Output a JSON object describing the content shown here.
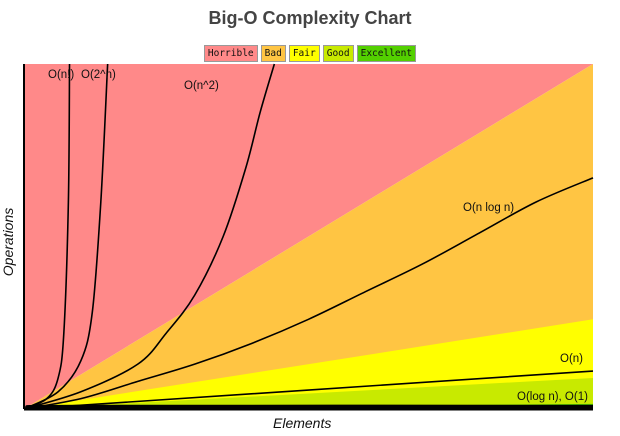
{
  "chart_data": {
    "type": "area",
    "title": "Big-O Complexity Chart",
    "xlabel": "Elements",
    "ylabel": "Operations",
    "legend_placement": "top-center",
    "grid": false,
    "x_range": [
      0,
      100
    ],
    "y_range": [
      0,
      100
    ],
    "zones": [
      {
        "name": "Horrible",
        "color": "#ff8989"
      },
      {
        "name": "Bad",
        "color": "#ffc543"
      },
      {
        "name": "Fair",
        "color": "#ffff00"
      },
      {
        "name": "Good",
        "color": "#c8ea00"
      },
      {
        "name": "Excellent",
        "color": "#53d000"
      }
    ],
    "zone_boundaries": {
      "bad_top_at_x100": 100,
      "fair_top_at_x100": 26,
      "good_top_at_x100": 9,
      "excellent_top_at_x100": 1.5
    },
    "series": [
      {
        "name": "O(n!)",
        "points": [
          [
            0,
            0
          ],
          [
            4,
            3
          ],
          [
            6,
            9
          ],
          [
            7,
            22
          ],
          [
            7.8,
            60
          ],
          [
            8,
            100
          ]
        ]
      },
      {
        "name": "O(2^n)",
        "points": [
          [
            0,
            0
          ],
          [
            6,
            5
          ],
          [
            10,
            14
          ],
          [
            12,
            28
          ],
          [
            13.5,
            60
          ],
          [
            14.7,
            100
          ]
        ]
      },
      {
        "name": "O(n^2)",
        "points": [
          [
            0,
            0
          ],
          [
            10,
            5
          ],
          [
            20,
            13
          ],
          [
            25,
            22
          ],
          [
            30,
            33
          ],
          [
            35,
            50
          ],
          [
            39,
            70
          ],
          [
            41.5,
            86
          ],
          [
            44,
            100
          ]
        ]
      },
      {
        "name": "O(n log n)",
        "points": [
          [
            0,
            0
          ],
          [
            10,
            3
          ],
          [
            20,
            8
          ],
          [
            30,
            13
          ],
          [
            40,
            19
          ],
          [
            50,
            26
          ],
          [
            60,
            34
          ],
          [
            70,
            42
          ],
          [
            80,
            51
          ],
          [
            90,
            60
          ],
          [
            100,
            67
          ]
        ]
      },
      {
        "name": "O(n)",
        "points": [
          [
            0,
            0
          ],
          [
            100,
            11
          ]
        ]
      },
      {
        "name": "O(log n), O(1)",
        "points": [
          [
            0,
            0
          ],
          [
            2,
            0.5
          ],
          [
            10,
            0.8
          ],
          [
            100,
            0.8
          ]
        ]
      }
    ]
  },
  "legend": {
    "horrible": "Horrible",
    "bad": "Bad",
    "fair": "Fair",
    "good": "Good",
    "excellent": "Excellent"
  },
  "labels": {
    "n_factorial": "O(n!)",
    "two_pow_n": "O(2^n)",
    "n_squared": "O(n^2)",
    "n_log_n": "O(n log n)",
    "n": "O(n)",
    "log_n_const": "O(log n), O(1)"
  }
}
